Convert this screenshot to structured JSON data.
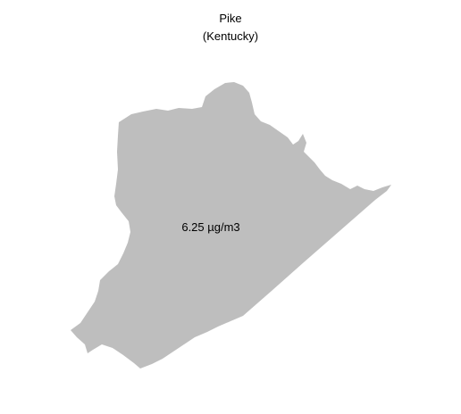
{
  "map": {
    "title": "Pike",
    "subtitle": "(Kentucky)",
    "value_label": "6.25 µg/m3",
    "fill_color": "#bebebe",
    "background_color": "#ffffff"
  }
}
